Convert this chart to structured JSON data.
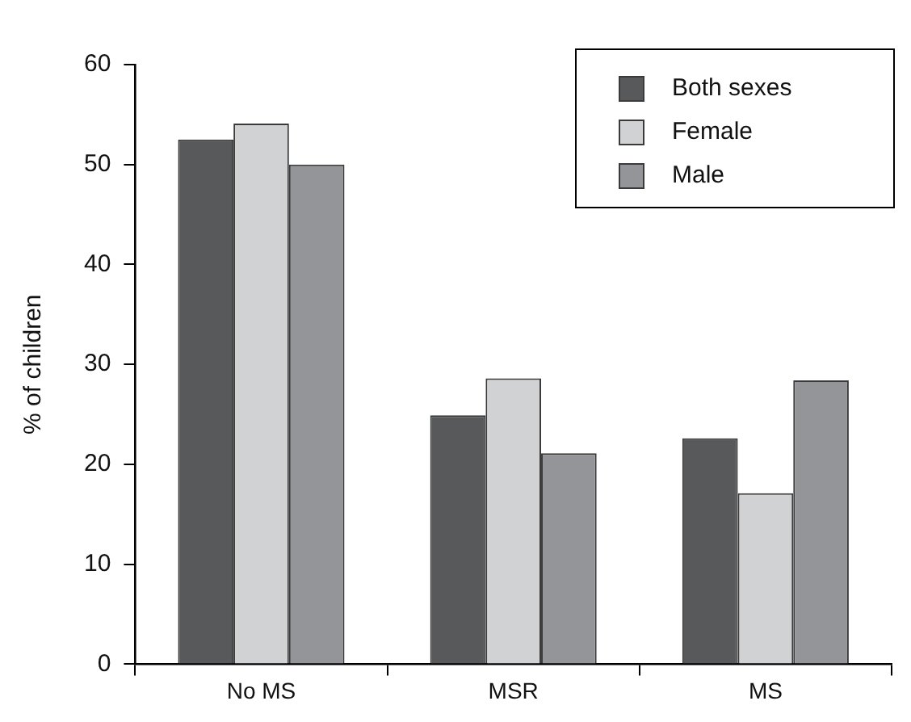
{
  "chart_data": {
    "type": "bar",
    "ylabel": "% of children",
    "categories": [
      "No MS",
      "MSR",
      "MS"
    ],
    "series": [
      {
        "name": "Both sexes",
        "color": "#58595b",
        "values": [
          52.5,
          24.9,
          22.6
        ]
      },
      {
        "name": "Female",
        "color": "#d1d2d4",
        "values": [
          54.1,
          28.6,
          17.1
        ]
      },
      {
        "name": "Male",
        "color": "#939598",
        "values": [
          50.0,
          21.1,
          28.4
        ]
      }
    ],
    "ylim": [
      0,
      60
    ],
    "yticks": [
      0,
      10,
      20,
      30,
      40,
      50,
      60
    ],
    "grid": false,
    "legend": "top right"
  }
}
